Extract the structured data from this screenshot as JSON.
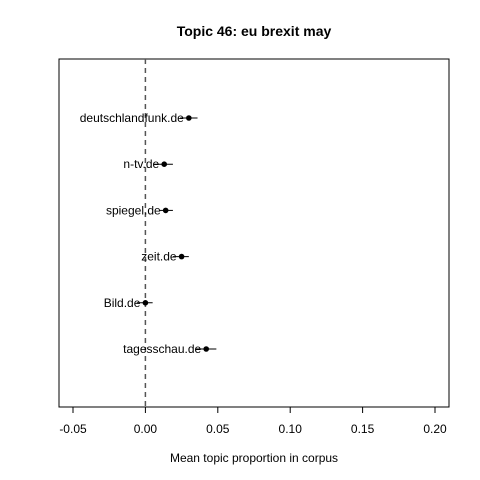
{
  "chart_data": {
    "type": "scatter",
    "title": "Topic 46: eu brexit may",
    "xlabel": "Mean topic proportion in corpus",
    "ylabel": "",
    "xlim": [
      -0.052,
      0.21
    ],
    "xticks": [
      -0.05,
      0.0,
      0.05,
      0.1,
      0.15,
      0.2
    ],
    "xtick_labels": [
      "-0.05",
      "0.00",
      "0.05",
      "0.10",
      "0.15",
      "0.20"
    ],
    "reference_line": {
      "x": 0,
      "style": "dashed"
    },
    "grid": false,
    "categories": [
      "deutschlandfunk.de",
      "n-tv.de",
      "spiegel.de",
      "zeit.de",
      "Bild.de",
      "tagesschau.de"
    ],
    "points": [
      {
        "label": "deutschlandfunk.de",
        "mean": 0.03,
        "lower": 0.024,
        "upper": 0.036
      },
      {
        "label": "n-tv.de",
        "mean": 0.013,
        "lower": 0.006,
        "upper": 0.019
      },
      {
        "label": "spiegel.de",
        "mean": 0.014,
        "lower": 0.01,
        "upper": 0.019
      },
      {
        "label": "zeit.de",
        "mean": 0.025,
        "lower": 0.019,
        "upper": 0.03
      },
      {
        "label": "Bild.de",
        "mean": 0.0,
        "lower": -0.006,
        "upper": 0.005
      },
      {
        "label": "tagesschau.de",
        "mean": 0.042,
        "lower": 0.035,
        "upper": 0.049
      }
    ]
  }
}
